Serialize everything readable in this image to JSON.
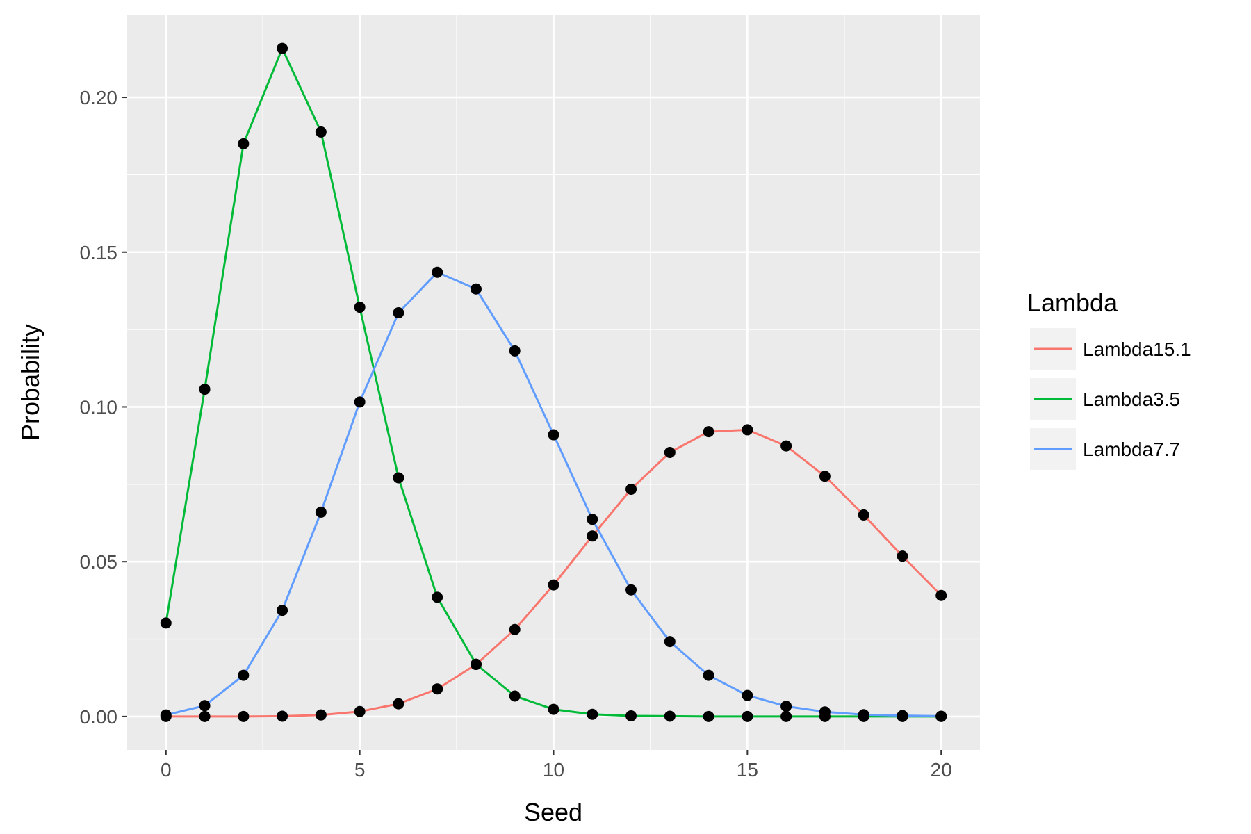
{
  "chart_data": {
    "type": "line",
    "xlabel": "Seed",
    "ylabel": "Probability",
    "xlim": [
      -1,
      21
    ],
    "ylim": [
      -0.0108,
      0.2265
    ],
    "x_ticks": [
      0,
      5,
      10,
      15,
      20
    ],
    "x_tick_labels": [
      "0",
      "5",
      "10",
      "15",
      "20"
    ],
    "y_ticks": [
      0,
      0.05,
      0.1,
      0.15,
      0.2
    ],
    "y_tick_labels": [
      "0.00",
      "0.05",
      "0.10",
      "0.15",
      "0.20"
    ],
    "x_minor_ticks": [
      2.5,
      7.5,
      12.5,
      17.5
    ],
    "y_minor_ticks": [
      0.025,
      0.075,
      0.125,
      0.175
    ],
    "grid": true,
    "legend": {
      "title": "Lambda",
      "placement": "right"
    },
    "marker_color": "#000000",
    "x": [
      0,
      1,
      2,
      3,
      4,
      5,
      6,
      7,
      8,
      9,
      10,
      11,
      12,
      13,
      14,
      15,
      16,
      17,
      18,
      19,
      20
    ],
    "series": [
      {
        "name": "Lambda15.1",
        "color": "#F8766D",
        "values": [
          0.0,
          0.0,
          0.0,
          0.0001,
          0.0005,
          0.0016,
          0.0041,
          0.0089,
          0.0168,
          0.0281,
          0.0425,
          0.0583,
          0.0734,
          0.0853,
          0.092,
          0.0926,
          0.0874,
          0.0776,
          0.0651,
          0.0518,
          0.0391
        ]
      },
      {
        "name": "Lambda3.5",
        "color": "#00BA38",
        "values": [
          0.0302,
          0.1057,
          0.185,
          0.2158,
          0.1888,
          0.1322,
          0.0771,
          0.0385,
          0.0169,
          0.0066,
          0.0023,
          0.0007,
          0.0002,
          0.0001,
          0.0,
          0.0,
          0.0,
          0.0,
          0.0,
          0.0,
          0.0
        ]
      },
      {
        "name": "Lambda7.7",
        "color": "#619CFF",
        "values": [
          0.0005,
          0.0035,
          0.0133,
          0.0343,
          0.066,
          0.1016,
          0.1304,
          0.1435,
          0.1381,
          0.1181,
          0.091,
          0.0637,
          0.0409,
          0.0242,
          0.0133,
          0.0068,
          0.0033,
          0.0015,
          0.0006,
          0.0003,
          0.0001
        ]
      }
    ]
  }
}
